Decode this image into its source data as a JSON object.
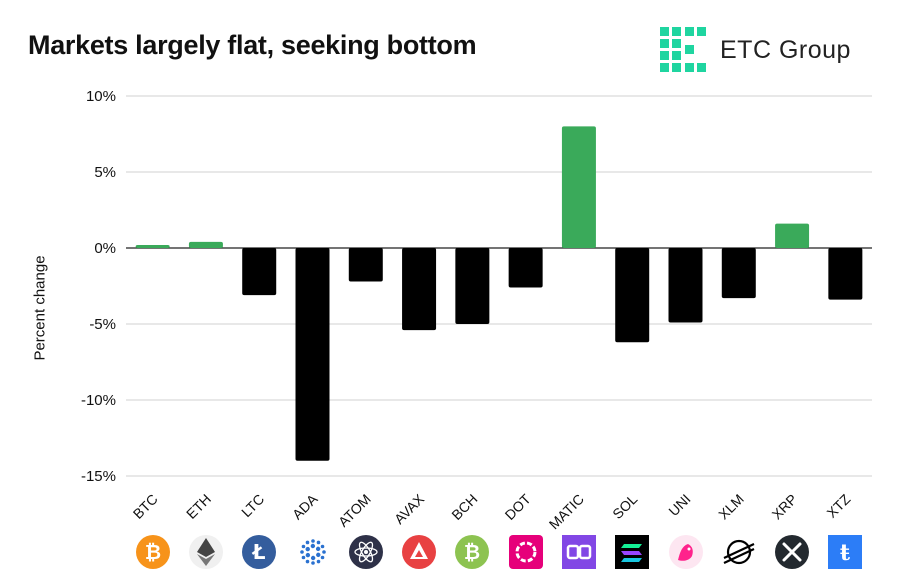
{
  "header": {
    "title": "Markets largely flat, seeking bottom",
    "brand": "ETC Group",
    "brand_color": "#1fd5a0"
  },
  "chart_data": {
    "type": "bar",
    "title": "Markets largely flat, seeking bottom",
    "xlabel": "",
    "ylabel": "Percent change",
    "ylim": [
      -15,
      10
    ],
    "yticks": [
      10,
      5,
      0,
      -5,
      -10,
      -15
    ],
    "ytick_labels": [
      "10%",
      "5%",
      "0%",
      "-5%",
      "-10%",
      "-15%"
    ],
    "grid": true,
    "positive_color": "#3aaa5a",
    "negative_color": "#000000",
    "categories": [
      "BTC",
      "ETH",
      "LTC",
      "ADA",
      "ATOM",
      "AVAX",
      "BCH",
      "DOT",
      "MATIC",
      "SOL",
      "UNI",
      "XLM",
      "XRP",
      "XTZ"
    ],
    "values": [
      0.2,
      0.4,
      -3.1,
      -14.0,
      -2.2,
      -5.4,
      -5.0,
      -2.6,
      8.0,
      -6.2,
      -4.9,
      -3.3,
      1.6,
      -3.4
    ]
  },
  "icons": [
    {
      "name": "btc-icon",
      "color": "#f7931a"
    },
    {
      "name": "eth-icon",
      "color": "#6b6b6b"
    },
    {
      "name": "ltc-icon",
      "color": "#345d9d"
    },
    {
      "name": "ada-icon",
      "color": "#2a71d0"
    },
    {
      "name": "atom-icon",
      "color": "#2e3148"
    },
    {
      "name": "avax-icon",
      "color": "#e84142"
    },
    {
      "name": "bch-icon",
      "color": "#8dc351"
    },
    {
      "name": "dot-icon",
      "color": "#e6007a"
    },
    {
      "name": "matic-icon",
      "color": "#8247e5"
    },
    {
      "name": "sol-icon",
      "color": "#000000"
    },
    {
      "name": "uni-icon",
      "color": "#ff007a"
    },
    {
      "name": "xlm-icon",
      "color": "#000000"
    },
    {
      "name": "xrp-icon",
      "color": "#23292f"
    },
    {
      "name": "xtz-icon",
      "color": "#2c7df7"
    }
  ]
}
